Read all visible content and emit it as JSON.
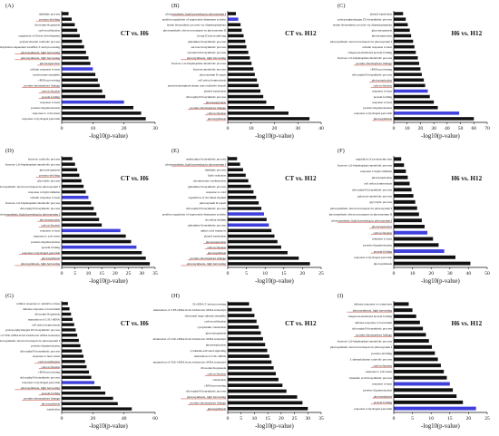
{
  "figure": {
    "xlabel": "-log10(p-value)"
  },
  "colors": {
    "bar": "#111111",
    "highlight_bar": "#3f3fdc",
    "underline": "#c0392b"
  },
  "chart_data": [
    {
      "type": "bar",
      "orientation": "horizontal",
      "letter": "(A)",
      "comparison": "CT vs. H6",
      "xlabel": "-log10(p-value)",
      "xlim": [
        0,
        30
      ],
      "xticks": [
        0,
        10,
        20,
        30
      ],
      "categories": [
        "rhythmic process",
        "protein refolding",
        "ribosome biogenesis",
        "carbon utilization",
        "regulation of flower development",
        "polysaccharide catabolic process",
        "polyadenylation-dependent snoRNA 3'-end processing",
        "photosynthesis, light harvesting",
        "photosynthesis, light harvesting",
        "photorespiration",
        "cellular response to heat",
        "nucleosome assembly",
        "rRNA processing",
        "protein-chromophore linkage",
        "carbon fixation",
        "protein folding",
        "response to heat",
        "protein oligomerization",
        "response to cold stress",
        "response to hydrogen peroxide"
      ],
      "values": [
        2.2,
        3.2,
        4.2,
        5.0,
        5.8,
        6.5,
        7.2,
        7.8,
        8.6,
        9.2,
        10.0,
        10.8,
        11.6,
        12.2,
        13.0,
        14.0,
        20.0,
        23.0,
        25.5,
        27.0
      ],
      "highlight": [
        10,
        16
      ],
      "underlined": [
        1,
        7,
        8,
        9,
        13,
        14,
        15
      ]
    },
    {
      "type": "bar",
      "orientation": "horizontal",
      "letter": "(B)",
      "comparison": "CT vs. H12",
      "xlabel": "-log10(p-value)",
      "xlim": [
        0,
        40
      ],
      "xticks": [
        0,
        10,
        20,
        30,
        40
      ],
      "categories": [
        "photosynthesis, light harvesting in photosystem I",
        "positive regulation of superoxide dismutase activity",
        "lysine biosynthetic process via diaminopimelate",
        "photosynthetic electron transport in photosystem II",
        "Group II intron splicing",
        "glutamine biosynthetic process",
        "sucrose biosynthetic process",
        "carotenoid biosynthetic process",
        "photosynthesis, light harvesting",
        "fructose 1,6-bisphosphate metabolic process",
        "fructose metabolic process",
        "photosystem II repair",
        "cell redox homeostasis",
        "pentose-phosphate shunt, non-oxidative branch",
        "plastid translation",
        "chlorophyll biosynthetic process",
        "photorespiration",
        "protein-chromophore linkage",
        "carbon fixation",
        "photosynthesis"
      ],
      "values": [
        3.5,
        4.5,
        5.5,
        6.0,
        6.8,
        7.5,
        8.0,
        8.8,
        9.5,
        10.2,
        11.0,
        11.6,
        12.5,
        13.2,
        14.0,
        15.2,
        16.5,
        20.0,
        26.0,
        35.0
      ],
      "highlight": [
        1
      ],
      "underlined": [
        0,
        8,
        16,
        17,
        18,
        19
      ]
    },
    {
      "type": "bar",
      "orientation": "horizontal",
      "letter": "(C)",
      "comparison": "H6 vs. H12",
      "xlabel": "-log10(p-value)",
      "xlim": [
        0,
        70
      ],
      "xticks": [
        0,
        10,
        20,
        30,
        40,
        50,
        60,
        70
      ],
      "categories": [
        "plastid translation",
        "protoporphyrinogen IX biosynthetic process",
        "lysine biosynthetic process via diaminopimelate",
        "gluconeogenesis",
        "photorespiration",
        "photosynthetic electron transport in photosystem I",
        "cellular response to heat",
        "chaperone-mediated protein folding",
        "fructose 1,6-bisphosphate metabolic process",
        "protein-chromophore linkage",
        "rRNA processing",
        "chlorophyll biosynthetic process",
        "photorespiration",
        "carbon fixation",
        "response to heat",
        "protein folding",
        "response to heat",
        "protein oligomerization",
        "response to hydrogen peroxide",
        "photosynthesis"
      ],
      "values": [
        7.0,
        9.0,
        10.5,
        12.0,
        13.0,
        14.5,
        15.5,
        16.5,
        18.0,
        19.0,
        20.0,
        21.0,
        22.5,
        23.5,
        25.5,
        27.0,
        30.0,
        33.0,
        49.0,
        60.0
      ],
      "highlight": [
        14,
        18
      ],
      "underlined": [
        9,
        12,
        13,
        19
      ]
    },
    {
      "type": "bar",
      "orientation": "horizontal",
      "letter": "(D)",
      "comparison": "CT vs. H6",
      "xlabel": "-log10(p-value)",
      "xlim": [
        0,
        35
      ],
      "xticks": [
        0,
        5,
        10,
        15,
        20,
        25,
        30,
        35
      ],
      "categories": [
        "fructose catabolic process",
        "fructose 1,6-bisphosphate metabolic process",
        "gluconeogenesis",
        "protein refolding",
        "glycolytic process",
        "photosynthetic electron transport in photosystem I",
        "response to light stimulus",
        "cellular response to heat",
        "fructose 1,6-bisphosphate metabolic process",
        "chlorophyll biosynthetic process",
        "photosynthesis, light harvesting in photosystem I",
        "photorespiration",
        "carbon fixation",
        "response to heat",
        "response to salt stress",
        "protein oligomerization",
        "protein folding",
        "response to hydrogen peroxide",
        "photosynthesis",
        "photosynthesis, light harvesting"
      ],
      "values": [
        4.0,
        5.0,
        5.8,
        6.6,
        7.4,
        8.2,
        9.0,
        10.0,
        11.0,
        12.0,
        13.0,
        14.0,
        15.0,
        22.0,
        24.0,
        26.0,
        28.0,
        30.0,
        31.5,
        33.0
      ],
      "highlight": [
        7,
        13,
        16
      ],
      "underlined": [
        3,
        10,
        11,
        12,
        17,
        18,
        19
      ]
    },
    {
      "type": "bar",
      "orientation": "horizontal",
      "letter": "(E)",
      "comparison": "CT vs. H12",
      "xlabel": "-log10(p-value)",
      "xlim": [
        0,
        25
      ],
      "xticks": [
        0,
        5,
        10,
        15,
        20,
        25
      ],
      "categories": [
        "methionine biosynthetic process",
        "photosynthesis, light harvesting in photosystem I",
        "rhythmic process",
        "lipid oxidation",
        "chromosome condensation",
        "glutamine biosynthetic process",
        "response to cold",
        "regulation of circadian rhythm",
        "photosystem II repair",
        "chlorophyll biosynthetic process",
        "positive regulation of superoxide dismutase activity",
        "circadian rhythm",
        "glutamine biosynthetic process",
        "amino acid transport",
        "plastid translation",
        "photorespiration",
        "carbon fixation",
        "photosynthesis",
        "protein-chromophore linkage",
        "photosynthesis, light harvesting"
      ],
      "values": [
        2.5,
        3.3,
        4.1,
        4.8,
        5.5,
        6.2,
        6.9,
        7.6,
        8.3,
        9.0,
        9.7,
        10.4,
        11.0,
        11.7,
        12.5,
        13.3,
        14.3,
        16.0,
        19.0,
        22.0
      ],
      "highlight": [
        10,
        12
      ],
      "underlined": [
        1,
        15,
        16,
        17,
        18,
        19
      ]
    },
    {
      "type": "bar",
      "orientation": "horizontal",
      "letter": "(F)",
      "comparison": "H6 vs. H12",
      "xlabel": "-log10(p-value)",
      "xlim": [
        0,
        50
      ],
      "xticks": [
        0,
        10,
        20,
        30,
        40,
        50
      ],
      "categories": [
        "regulation of proteasome size",
        "fructose 1,6-bisphosphate metabolic process",
        "response to light stimulus",
        "photorespiration",
        "cell redox homeostasis",
        "chlorophyll biosynthetic process",
        "galactose metabolic process",
        "glycolytic process",
        "photosynthetic electron transport in photosystem I",
        "photosynthetic electron transport in photosystem II",
        "photosynthesis, light harvesting in photosystem I",
        "photorespiration",
        "carbon fixation",
        "response to heat",
        "protein oligomerization",
        "protein folding",
        "response to hydrogen peroxide",
        "photosynthesis"
      ],
      "values": [
        4.0,
        5.5,
        6.5,
        7.5,
        8.5,
        9.5,
        10.5,
        11.5,
        12.5,
        13.5,
        15.0,
        16.5,
        18.0,
        21.0,
        24.0,
        27.0,
        33.0,
        41.0
      ],
      "highlight": [
        12,
        15
      ],
      "underlined": [
        10,
        11,
        12,
        15
      ]
    },
    {
      "type": "bar",
      "orientation": "horizontal",
      "letter": "(G)",
      "comparison": "CT vs. H6",
      "xlabel": "-log10(p-value)",
      "xlim": [
        0,
        60
      ],
      "xticks": [
        0,
        20,
        40,
        60
      ],
      "categories": [
        "cellular response to oxidative stress",
        "defense response to bacterium",
        "ribosome biogenesis",
        "maturation of LSU-rRNA",
        "cell redox homeostasis",
        "protoporphyrinogen IX biosynthetic process",
        "maturation of SSU-rRNA from tricistronic rRNA transcript",
        "photosynthetic electron transport in photosystem I",
        "protein oligomerization",
        "chlorophyll biosynthetic process",
        "response to heat stress",
        "carbon utilization",
        "carbon fixation",
        "rRNA processing",
        "chlorophyll biosynthetic process",
        "response to hydrogen peroxide",
        "photosynthesis, light harvesting",
        "protein folding",
        "protein-chromophore linkage",
        "photosynthesis",
        "translation"
      ],
      "values": [
        4.0,
        5.0,
        6.0,
        7.0,
        8.0,
        9.0,
        10.0,
        11.0,
        12.0,
        13.0,
        14.0,
        15.0,
        16.0,
        17.5,
        19.0,
        21.0,
        25.0,
        28.0,
        33.0,
        36.0,
        45.0
      ],
      "highlight": [
        15
      ],
      "underlined": [
        11,
        12,
        16,
        17,
        18,
        19
      ]
    },
    {
      "type": "bar",
      "orientation": "horizontal",
      "letter": "(H)",
      "comparison": "CT vs. H12",
      "xlabel": "-log10(p-value)",
      "xlim": [
        0,
        35
      ],
      "xticks": [
        0,
        5,
        10,
        15,
        20,
        25,
        30,
        35
      ],
      "categories": [
        "5S rRNA 5'-end processing",
        "maturation of 5.8S rRNA from tricistronic rRNA transcript",
        "ribosomal large subunit assembly",
        "carbon utilization",
        "cytoplasmic translation",
        "gluconeogenesis",
        "maturation of LSU-rRNA from tricistronic rRNA transcript",
        "photorespiration",
        "cytokinin-activated signaling",
        "maturation of LSU-rRNA",
        "maturation of SSU-rRNA from tricistronic rRNA transcript",
        "ribosome biogenesis",
        "carbon fixation",
        "translation",
        "rRNA processing",
        "chlorophyll biosynthetic process",
        "photosynthesis, light harvesting",
        "protein-chromophore linkage",
        "photosynthesis"
      ],
      "values": [
        8.0,
        9.0,
        10.0,
        10.8,
        11.6,
        12.4,
        13.2,
        14.0,
        14.8,
        15.6,
        16.4,
        17.2,
        18.0,
        19.0,
        20.5,
        22.0,
        26.0,
        28.0,
        30.0
      ],
      "highlight": [],
      "underlined": [
        12,
        16,
        17,
        18
      ]
    },
    {
      "type": "bar",
      "orientation": "horizontal",
      "letter": "(I)",
      "comparison": "H6 vs. H12",
      "xlabel": "-log10(p-value)",
      "xlim": [
        0,
        25
      ],
      "xticks": [
        0,
        5,
        10,
        15,
        20,
        25
      ],
      "categories": [
        "defense response to oomycetes",
        "photosynthesis, light harvesting",
        "chaperone-mediated protein folding",
        "defense response to bacterium",
        "chlorophyll biosynthetic process",
        "protein-chromophore linkage",
        "fructose 1,6-bisphosphate metabolic process",
        "photosynthetic electron transport in photosystem I",
        "protein refolding",
        "L-phenylalanine catabolic process",
        "carbon fixation",
        "response to salt stress",
        "cinnamic acid biosynthetic process",
        "response to heat",
        "protein oligomerization",
        "photosynthesis",
        "protein folding",
        "response to hydrogen peroxide"
      ],
      "values": [
        4.0,
        5.0,
        6.0,
        7.0,
        7.8,
        8.6,
        9.4,
        10.2,
        11.0,
        11.8,
        12.6,
        13.4,
        14.2,
        15.0,
        15.8,
        16.8,
        18.5,
        22.0
      ],
      "highlight": [
        13,
        17
      ],
      "underlined": [
        1,
        5,
        10,
        15,
        16
      ]
    }
  ]
}
